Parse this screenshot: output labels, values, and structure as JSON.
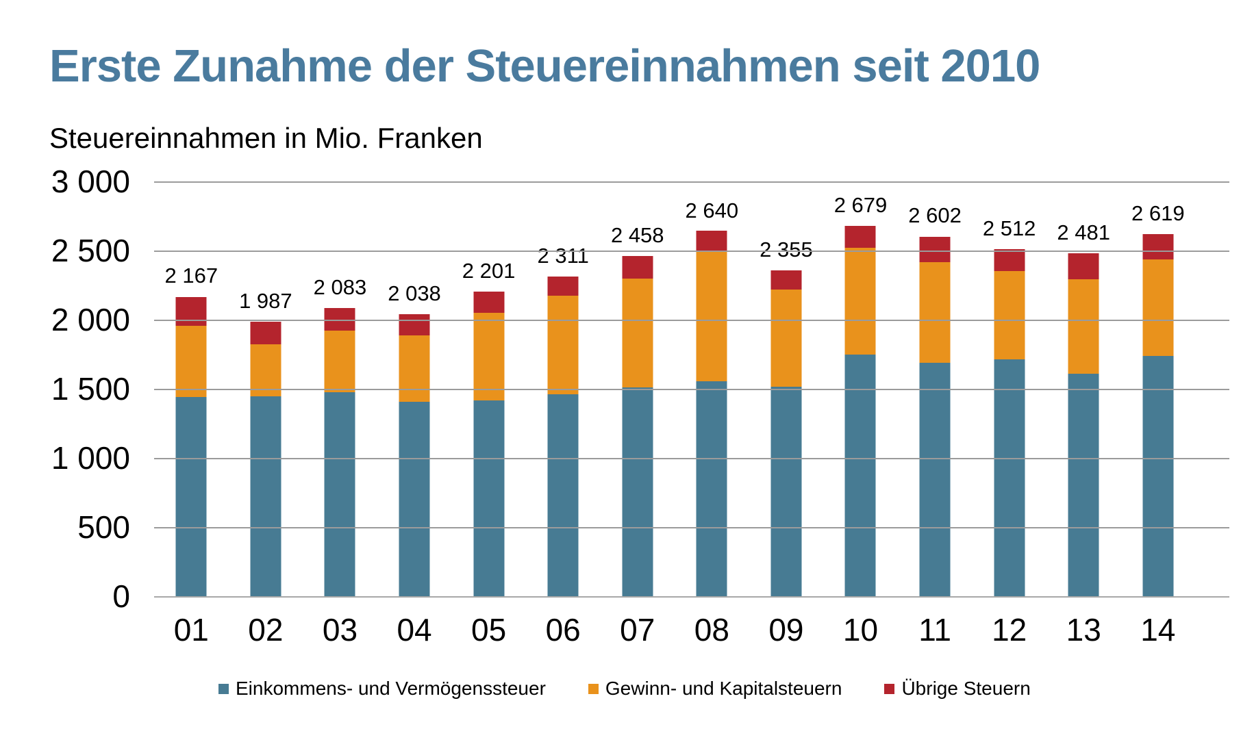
{
  "title": "Erste Zunahme der Steuereinnahmen seit 2010",
  "subtitle": "Steuereinnahmen in Mio. Franken",
  "colors": {
    "title_text": "#4A7B9E",
    "einkommens": "#477B93",
    "gewinn": "#E9921C",
    "uebrige": "#B4242D",
    "gridline": "#9B9B9B"
  },
  "chart_data": {
    "type": "bar",
    "stacked": true,
    "title": "Erste Zunahme der Steuereinnahmen seit 2010",
    "ylabel": "Steuereinnahmen in Mio. Franken",
    "xlabel": "",
    "grid": true,
    "legend_position": "bottom",
    "ylim": [
      0,
      3000
    ],
    "y_tick_labels": [
      "3 000",
      "2 500",
      "2 000",
      "1 500",
      "1 000",
      "500",
      "0"
    ],
    "categories": [
      "01",
      "02",
      "03",
      "04",
      "05",
      "06",
      "07",
      "08",
      "09",
      "10",
      "11",
      "12",
      "13",
      "14"
    ],
    "series": [
      {
        "name": "Einkommens- und Vermögenssteuer",
        "color": "#477B93",
        "values": [
          1442,
          1447,
          1475,
          1406,
          1417,
          1458,
          1508,
          1554,
          1513,
          1747,
          1689,
          1713,
          1610,
          1739
        ]
      },
      {
        "name": "Gewinn- und Kapitalsteuern",
        "color": "#E9921C",
        "values": [
          515,
          375,
          446,
          481,
          632,
          713,
          789,
          939,
          701,
          774,
          730,
          640,
          682,
          698
        ]
      },
      {
        "name": "Übrige Steuern",
        "color": "#B4242D",
        "values": [
          210,
          165,
          162,
          151,
          152,
          140,
          161,
          147,
          141,
          158,
          183,
          159,
          189,
          182
        ]
      }
    ],
    "totals": [
      2167,
      1987,
      2083,
      2038,
      2201,
      2311,
      2458,
      2640,
      2355,
      2679,
      2602,
      2512,
      2481,
      2619
    ],
    "total_labels": [
      "2 167",
      "1 987",
      "2 083",
      "2 038",
      "2 201",
      "2 311",
      "2 458",
      "2 640",
      "2 355",
      "2 679",
      "2 602",
      "2 512",
      "2 481",
      "2 619"
    ]
  },
  "legend": {
    "items": [
      {
        "label": "Einkommens- und Vermögenssteuer",
        "color": "#477B93"
      },
      {
        "label": "Gewinn- und Kapitalsteuern",
        "color": "#E9921C"
      },
      {
        "label": "Übrige Steuern",
        "color": "#B4242D"
      }
    ]
  }
}
